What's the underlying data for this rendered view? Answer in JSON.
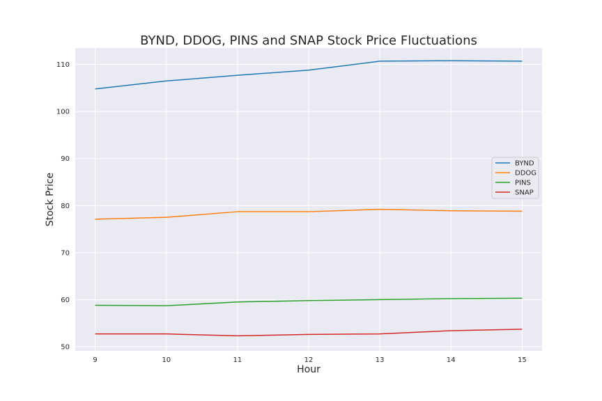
{
  "chart_data": {
    "type": "line",
    "title": "BYND, DDOG, PINS and SNAP Stock Price Fluctuations",
    "xlabel": "Hour",
    "ylabel": "Stock Price",
    "x": [
      9,
      10,
      11,
      12,
      13,
      14,
      15
    ],
    "xlim": [
      8.72,
      15.28
    ],
    "ylim": [
      49.1,
      113.5
    ],
    "xticks": [
      9,
      10,
      11,
      12,
      13,
      14,
      15
    ],
    "yticks": [
      50,
      60,
      70,
      80,
      90,
      100,
      110
    ],
    "grid": true,
    "legend_position": "center-right",
    "background": "#eaeaf2",
    "series": [
      {
        "name": "BYND",
        "color": "#1f77b4",
        "values": [
          104.8,
          106.5,
          107.7,
          108.8,
          110.7,
          110.8,
          110.7
        ]
      },
      {
        "name": "DDOG",
        "color": "#ff7f0e",
        "values": [
          77.1,
          77.5,
          78.7,
          78.7,
          79.2,
          78.9,
          78.8
        ]
      },
      {
        "name": "PINS",
        "color": "#2ca02c",
        "values": [
          58.8,
          58.7,
          59.5,
          59.8,
          60.0,
          60.2,
          60.3
        ]
      },
      {
        "name": "SNAP",
        "color": "#d62728",
        "values": [
          52.7,
          52.7,
          52.3,
          52.6,
          52.7,
          53.4,
          53.7
        ]
      }
    ]
  }
}
